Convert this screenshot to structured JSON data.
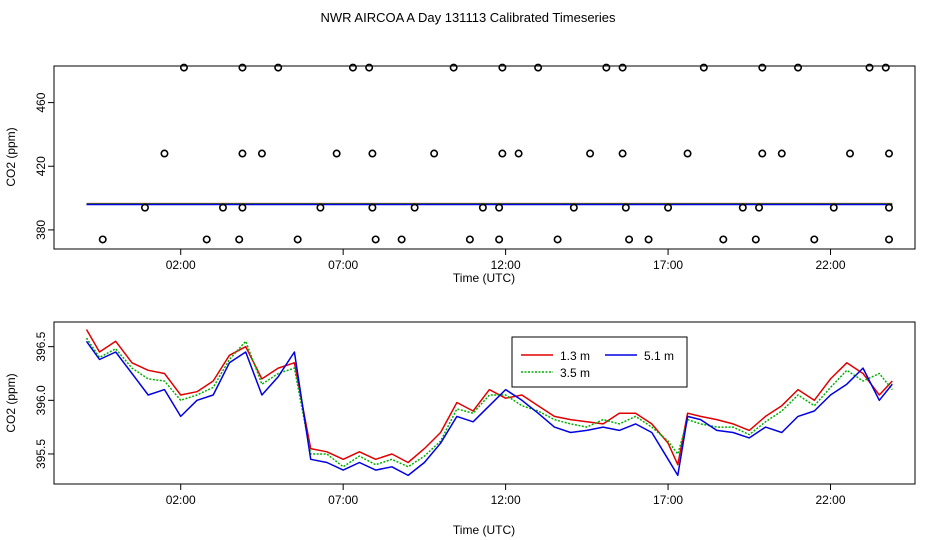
{
  "title": "NWR AIRCOA A  Day 131113  Calibrated Timeseries",
  "colors": {
    "s1": "#e00000",
    "s2": "#00b000",
    "s3": "#0000e0"
  },
  "chart_data": [
    {
      "type": "scatter",
      "title": "NWR AIRCOA A  Day 131113  Calibrated Timeseries",
      "xlabel": "Time (UTC)",
      "ylabel": "CO2 (ppm)",
      "xlim": [
        -1.9,
        24.6
      ],
      "ylim": [
        368,
        483
      ],
      "xticks": [
        2,
        7,
        12,
        17,
        22
      ],
      "xtick_labels": [
        "02:00",
        "07:00",
        "12:00",
        "17:00",
        "22:00"
      ],
      "yticks": [
        380,
        420,
        460
      ],
      "ytick_labels": [
        "380",
        "420",
        "460"
      ],
      "scatter_points": [
        {
          "x": 1.5,
          "y": 428
        },
        {
          "x": 2.1,
          "y": 482
        },
        {
          "x": 0.9,
          "y": 394
        },
        {
          "x": 2.8,
          "y": 374
        },
        {
          "x": -0.4,
          "y": 374
        },
        {
          "x": 3.3,
          "y": 394
        },
        {
          "x": 3.8,
          "y": 374
        },
        {
          "x": 3.9,
          "y": 394
        },
        {
          "x": 3.9,
          "y": 428
        },
        {
          "x": 3.9,
          "y": 482
        },
        {
          "x": 4.5,
          "y": 428
        },
        {
          "x": 5.0,
          "y": 482
        },
        {
          "x": 5.6,
          "y": 374
        },
        {
          "x": 6.3,
          "y": 394
        },
        {
          "x": 6.8,
          "y": 428
        },
        {
          "x": 7.3,
          "y": 482
        },
        {
          "x": 7.8,
          "y": 482
        },
        {
          "x": 7.9,
          "y": 394
        },
        {
          "x": 7.9,
          "y": 428
        },
        {
          "x": 8.0,
          "y": 374
        },
        {
          "x": 8.8,
          "y": 374
        },
        {
          "x": 9.2,
          "y": 394
        },
        {
          "x": 9.8,
          "y": 428
        },
        {
          "x": 10.4,
          "y": 482
        },
        {
          "x": 10.9,
          "y": 374
        },
        {
          "x": 11.3,
          "y": 394
        },
        {
          "x": 11.8,
          "y": 374
        },
        {
          "x": 11.8,
          "y": 394
        },
        {
          "x": 11.9,
          "y": 428
        },
        {
          "x": 11.9,
          "y": 482
        },
        {
          "x": 12.4,
          "y": 428
        },
        {
          "x": 13.0,
          "y": 482
        },
        {
          "x": 13.6,
          "y": 374
        },
        {
          "x": 14.1,
          "y": 394
        },
        {
          "x": 14.6,
          "y": 428
        },
        {
          "x": 15.1,
          "y": 482
        },
        {
          "x": 15.6,
          "y": 428
        },
        {
          "x": 15.6,
          "y": 482
        },
        {
          "x": 15.7,
          "y": 394
        },
        {
          "x": 15.8,
          "y": 374
        },
        {
          "x": 16.4,
          "y": 374
        },
        {
          "x": 17.0,
          "y": 394
        },
        {
          "x": 17.6,
          "y": 428
        },
        {
          "x": 18.1,
          "y": 482
        },
        {
          "x": 18.7,
          "y": 374
        },
        {
          "x": 19.3,
          "y": 394
        },
        {
          "x": 19.7,
          "y": 374
        },
        {
          "x": 19.8,
          "y": 394
        },
        {
          "x": 19.9,
          "y": 428
        },
        {
          "x": 19.9,
          "y": 482
        },
        {
          "x": 20.5,
          "y": 428
        },
        {
          "x": 21.0,
          "y": 482
        },
        {
          "x": 21.5,
          "y": 374
        },
        {
          "x": 22.1,
          "y": 394
        },
        {
          "x": 22.6,
          "y": 428
        },
        {
          "x": 23.2,
          "y": 482
        },
        {
          "x": 23.7,
          "y": 482
        },
        {
          "x": 23.8,
          "y": 428
        },
        {
          "x": 23.8,
          "y": 394
        },
        {
          "x": 23.8,
          "y": 374
        }
      ],
      "line_series": [
        {
          "name": "1.3 m",
          "y": 396.5
        },
        {
          "name": "3.5 m",
          "y": 396.3
        },
        {
          "name": "5.1 m",
          "y": 396.0
        }
      ]
    },
    {
      "type": "line",
      "xlabel": "Time (UTC)",
      "ylabel": "CO2 (ppm)",
      "xlim": [
        -1.9,
        24.6
      ],
      "ylim": [
        395.22,
        396.73
      ],
      "xticks": [
        2,
        7,
        12,
        17,
        22
      ],
      "xtick_labels": [
        "02:00",
        "07:00",
        "12:00",
        "17:00",
        "22:00"
      ],
      "yticks": [
        395.5,
        396.0,
        396.5
      ],
      "ytick_labels": [
        "395.5",
        "396.0",
        "396.5"
      ],
      "legend": {
        "position": "top-center",
        "entries": [
          "1.3 m",
          "5.1 m",
          "3.5 m"
        ]
      },
      "series": [
        {
          "name": "1.3 m",
          "x": [
            -0.9,
            -0.5,
            0,
            0.5,
            1.0,
            1.5,
            2.0,
            2.5,
            3.0,
            3.5,
            4.0,
            4.5,
            5.0,
            5.5,
            6.0,
            6.5,
            7.0,
            7.5,
            8.0,
            8.5,
            9.0,
            9.5,
            10.0,
            10.5,
            11.0,
            11.5,
            12.0,
            12.5,
            13.0,
            13.5,
            14.0,
            14.5,
            15.0,
            15.5,
            16.0,
            16.5,
            17.0,
            17.3,
            17.6,
            18.0,
            18.5,
            19.0,
            19.5,
            20.0,
            20.5,
            21.0,
            21.5,
            22.0,
            22.5,
            23.0,
            23.5,
            23.9
          ],
          "y": [
            396.66,
            396.45,
            396.55,
            396.35,
            396.28,
            396.25,
            396.05,
            396.08,
            396.18,
            396.42,
            396.5,
            396.2,
            396.3,
            396.35,
            395.55,
            395.52,
            395.45,
            395.52,
            395.45,
            395.5,
            395.42,
            395.55,
            395.7,
            395.98,
            395.9,
            396.1,
            396.02,
            396.05,
            395.95,
            395.85,
            395.82,
            395.8,
            395.78,
            395.88,
            395.88,
            395.78,
            395.6,
            395.4,
            395.88,
            395.85,
            395.82,
            395.78,
            395.72,
            395.85,
            395.95,
            396.1,
            396.0,
            396.2,
            396.35,
            396.25,
            396.05,
            396.18
          ]
        },
        {
          "name": "3.5 m",
          "x": [
            -0.9,
            -0.5,
            0,
            0.5,
            1.0,
            1.5,
            2.0,
            2.5,
            3.0,
            3.5,
            4.0,
            4.5,
            5.0,
            5.5,
            6.0,
            6.5,
            7.0,
            7.5,
            8.0,
            8.5,
            9.0,
            9.5,
            10.0,
            10.5,
            11.0,
            11.5,
            12.0,
            12.5,
            13.0,
            13.5,
            14.0,
            14.5,
            15.0,
            15.5,
            16.0,
            16.5,
            17.0,
            17.3,
            17.6,
            18.0,
            18.5,
            19.0,
            19.5,
            20.0,
            20.5,
            21.0,
            21.5,
            22.0,
            22.5,
            23.0,
            23.5,
            23.9
          ],
          "y": [
            396.58,
            396.4,
            396.48,
            396.3,
            396.2,
            396.18,
            396.0,
            396.05,
            396.12,
            396.38,
            396.55,
            396.15,
            396.25,
            396.3,
            395.5,
            395.5,
            395.38,
            395.48,
            395.4,
            395.45,
            395.38,
            395.48,
            395.62,
            395.92,
            395.88,
            396.05,
            396.05,
            395.95,
            395.9,
            395.82,
            395.78,
            395.75,
            395.82,
            395.78,
            395.85,
            395.75,
            395.62,
            395.5,
            395.82,
            395.78,
            395.75,
            395.75,
            395.68,
            395.8,
            395.9,
            396.05,
            395.95,
            396.12,
            396.28,
            396.18,
            396.25,
            396.1
          ]
        },
        {
          "name": "5.1 m",
          "x": [
            -0.9,
            -0.5,
            0,
            0.5,
            1.0,
            1.5,
            2.0,
            2.5,
            3.0,
            3.5,
            4.0,
            4.5,
            5.0,
            5.5,
            6.0,
            6.5,
            7.0,
            7.5,
            8.0,
            8.5,
            9.0,
            9.5,
            10.0,
            10.5,
            11.0,
            11.5,
            12.0,
            12.5,
            13.0,
            13.5,
            14.0,
            14.5,
            15.0,
            15.5,
            16.0,
            16.5,
            17.0,
            17.3,
            17.6,
            18.0,
            18.5,
            19.0,
            19.5,
            20.0,
            20.5,
            21.0,
            21.5,
            22.0,
            22.5,
            23.0,
            23.5,
            23.9
          ],
          "y": [
            396.55,
            396.38,
            396.45,
            396.25,
            396.05,
            396.1,
            395.85,
            396.0,
            396.05,
            396.35,
            396.45,
            396.05,
            396.22,
            396.45,
            395.45,
            395.42,
            395.35,
            395.42,
            395.35,
            395.38,
            395.3,
            395.42,
            395.6,
            395.85,
            395.8,
            395.95,
            396.1,
            396.0,
            395.88,
            395.75,
            395.7,
            395.72,
            395.75,
            395.72,
            395.78,
            395.7,
            395.45,
            395.3,
            395.85,
            395.82,
            395.72,
            395.7,
            395.65,
            395.75,
            395.7,
            395.85,
            395.9,
            396.05,
            396.15,
            396.3,
            396.0,
            396.15
          ]
        }
      ]
    }
  ]
}
